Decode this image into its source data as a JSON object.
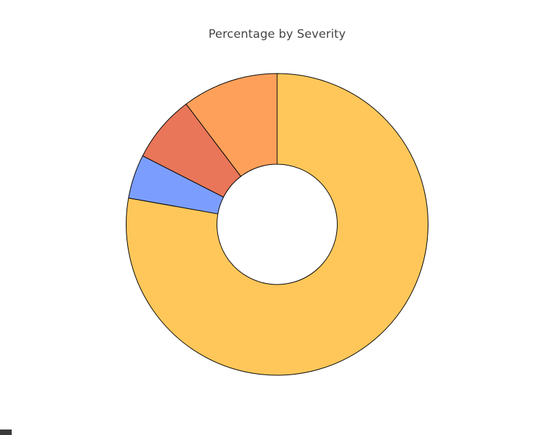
{
  "chart_data": {
    "type": "pie",
    "variant": "donut",
    "title": "Percentage by Severity",
    "direction": "clockwise",
    "start_angle_deg": 0,
    "slice_border_color": "#000000",
    "slices": [
      {
        "value": 77.8,
        "color": "#FFC75A"
      },
      {
        "value": 4.7,
        "color": "#7B9EFE"
      },
      {
        "value": 7.2,
        "color": "#E97659"
      },
      {
        "value": 10.3,
        "color": "#FFA05A"
      }
    ],
    "legend": "none"
  }
}
